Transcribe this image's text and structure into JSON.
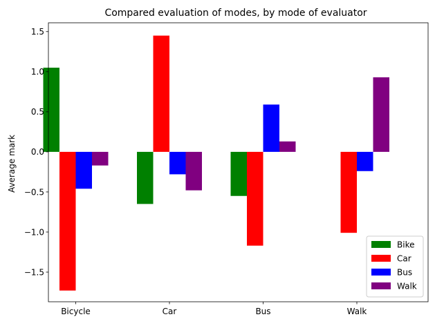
{
  "chart_data": {
    "type": "bar",
    "title": "Compared evaluation of modes, by mode of evaluator",
    "xlabel": "",
    "ylabel": "Average mark",
    "categories": [
      "Bicycle",
      "Car",
      "Bus",
      "Walk"
    ],
    "ylim": [
      -1.87,
      1.61
    ],
    "yticks": [
      1.5,
      1.0,
      0.5,
      0.0,
      -0.5,
      -1.0,
      -1.5
    ],
    "ytick_labels": [
      "1.5",
      "1.0",
      "0.5",
      "0.0",
      "−0.5",
      "−1.0",
      "−1.5"
    ],
    "grid": false,
    "legend_position": "lower-right",
    "series": [
      {
        "name": "Bike",
        "color": "#008000",
        "values": [
          1.05,
          -0.65,
          -0.55,
          null
        ]
      },
      {
        "name": "Car",
        "color": "#ff0000",
        "values": [
          -1.73,
          1.45,
          -1.17,
          -1.01
        ]
      },
      {
        "name": "Bus",
        "color": "#0000ff",
        "values": [
          -0.46,
          -0.28,
          0.59,
          -0.24
        ]
      },
      {
        "name": "Walk",
        "color": "#800080",
        "values": [
          -0.17,
          -0.48,
          0.13,
          0.93
        ]
      }
    ]
  }
}
